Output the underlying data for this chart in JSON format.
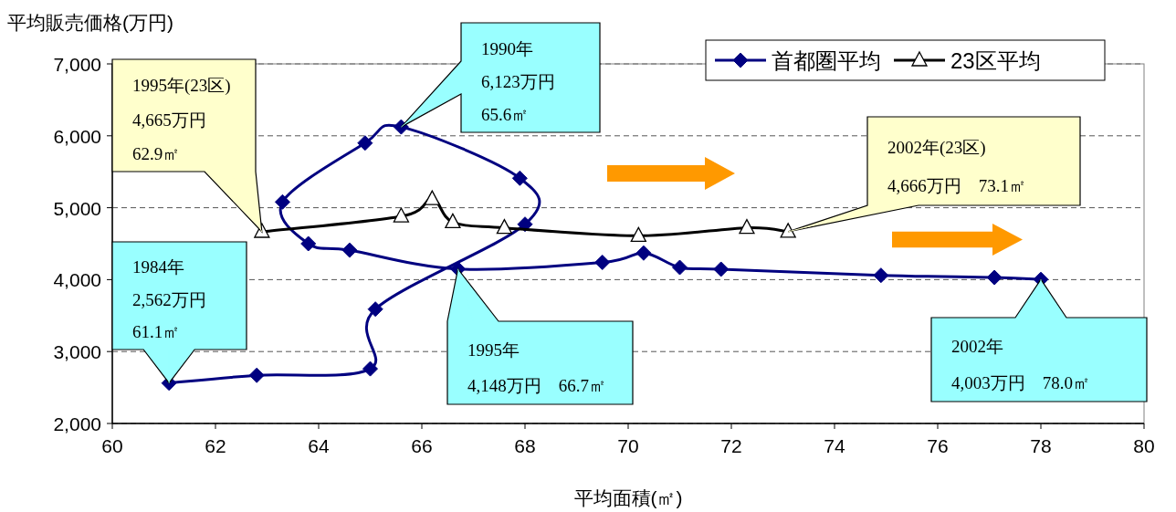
{
  "chart_data": {
    "type": "line",
    "xlabel": "平均面積(㎡)",
    "ylabel": "平均販売価格(万円)",
    "xlim": [
      60,
      80
    ],
    "xticks": [
      60,
      62,
      64,
      66,
      68,
      70,
      72,
      74,
      76,
      78,
      80
    ],
    "ylim": [
      2000,
      7000
    ],
    "yticks": [
      {
        "value": 2000,
        "label": "2,000"
      },
      {
        "value": 3000,
        "label": "3,000"
      },
      {
        "value": 4000,
        "label": "4,000"
      },
      {
        "value": 5000,
        "label": "5,000"
      },
      {
        "value": 6000,
        "label": "6,000"
      },
      {
        "value": 7000,
        "label": "7,000"
      }
    ],
    "grid": "y",
    "legend": "top right",
    "line_style": "solid",
    "series": [
      {
        "name": "首都圏平均",
        "color": "#000080",
        "marker": "diamond",
        "x": [
          61.1,
          62.8,
          65.0,
          65.1,
          68.0,
          67.9,
          65.6,
          64.9,
          63.3,
          63.8,
          64.6,
          66.7,
          69.5,
          70.3,
          71.0,
          71.8,
          74.9,
          77.1,
          78.0
        ],
        "values": [
          2562,
          2670,
          2760,
          3590,
          4770,
          5410,
          6123,
          5900,
          5080,
          4500,
          4410,
          4148,
          4240,
          4370,
          4170,
          4145,
          4060,
          4030,
          4003
        ]
      },
      {
        "name": "23区平均",
        "color": "#000000",
        "marker": "triangle",
        "x": [
          62.9,
          65.6,
          66.2,
          66.6,
          67.6,
          70.2,
          72.3,
          73.1
        ],
        "values": [
          4665,
          4880,
          5120,
          4800,
          4720,
          4610,
          4720,
          4666
        ]
      }
    ],
    "annotations": [
      {
        "text": "1984年\n2,562万円\n61.1㎡",
        "x": 61.1,
        "y": 2562
      },
      {
        "text": "1990年\n6,123万円\n65.6㎡",
        "x": 65.6,
        "y": 6123
      },
      {
        "text": "1995年(23区)\n4,665万円\n62.9㎡",
        "x": 62.9,
        "y": 4665
      },
      {
        "text": "1995年\n4,148万円　66.7㎡",
        "x": 66.7,
        "y": 4148
      },
      {
        "text": "2002年(23区)\n4,666万円　73.1㎡",
        "x": 73.1,
        "y": 4666
      },
      {
        "text": "2002年\n4,003万円　78.0㎡",
        "x": 78.0,
        "y": 4003
      }
    ]
  }
}
